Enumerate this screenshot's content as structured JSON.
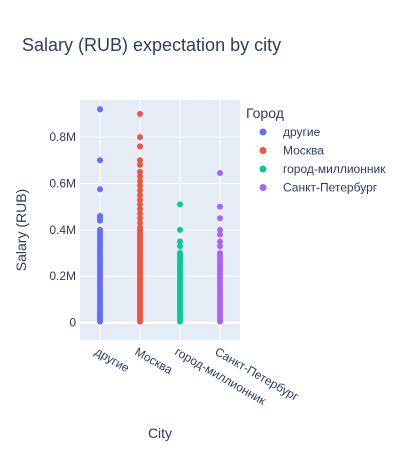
{
  "chart_data": {
    "type": "scatter",
    "title": "Salary (RUB) expectation by city",
    "xlabel": "City",
    "ylabel": "Salary (RUB)",
    "categories": [
      "другие",
      "Москва",
      "город-миллионник",
      "Санкт-Петербург"
    ],
    "y_ticks": [
      "0",
      "0.2M",
      "0.4M",
      "0.6M",
      "0.8M"
    ],
    "y_tick_values": [
      0,
      200000,
      400000,
      600000,
      800000
    ],
    "ylim": [
      -75000,
      960000
    ],
    "legend_title": "Город",
    "legend_position": "right",
    "grid": true,
    "plot_bg": "#e5ecf6",
    "series": [
      {
        "name": "другие",
        "color": "#636efa",
        "category": "другие",
        "values": [
          920000,
          700000,
          575000,
          460000,
          450000,
          440000,
          400000,
          390000,
          380000,
          370000,
          360000,
          350000,
          340000,
          330000,
          320000,
          310000,
          300000,
          290000,
          280000,
          270000,
          260000,
          250000,
          240000,
          230000,
          220000,
          210000,
          200000,
          190000,
          180000,
          170000,
          160000,
          150000,
          140000,
          130000,
          120000,
          110000,
          100000,
          90000,
          80000,
          70000,
          60000,
          50000,
          40000,
          30000,
          20000,
          10000,
          5000
        ]
      },
      {
        "name": "Москва",
        "color": "#ef553b",
        "category": "Москва",
        "values": [
          900000,
          800000,
          760000,
          700000,
          680000,
          650000,
          630000,
          610000,
          590000,
          570000,
          550000,
          530000,
          510000,
          490000,
          470000,
          450000,
          430000,
          410000,
          400000,
          390000,
          380000,
          370000,
          360000,
          350000,
          340000,
          330000,
          320000,
          310000,
          300000,
          290000,
          280000,
          270000,
          260000,
          250000,
          240000,
          230000,
          220000,
          210000,
          200000,
          190000,
          180000,
          170000,
          160000,
          150000,
          140000,
          130000,
          120000,
          110000,
          100000,
          90000,
          80000,
          70000,
          60000,
          50000,
          40000,
          30000,
          20000,
          10000,
          5000
        ]
      },
      {
        "name": "город-миллионник",
        "color": "#00cc96",
        "category": "город-миллионник",
        "values": [
          510000,
          400000,
          350000,
          330000,
          300000,
          290000,
          280000,
          270000,
          260000,
          250000,
          240000,
          230000,
          220000,
          210000,
          200000,
          190000,
          180000,
          170000,
          160000,
          150000,
          140000,
          130000,
          120000,
          110000,
          100000,
          90000,
          80000,
          70000,
          60000,
          50000,
          40000,
          30000,
          20000,
          10000,
          5000
        ]
      },
      {
        "name": "Санкт-Петербург",
        "color": "#ab63fa",
        "category": "Санкт-Петербург",
        "values": [
          645000,
          500000,
          450000,
          400000,
          380000,
          350000,
          330000,
          300000,
          290000,
          280000,
          270000,
          260000,
          250000,
          240000,
          230000,
          220000,
          210000,
          200000,
          190000,
          180000,
          170000,
          160000,
          150000,
          140000,
          130000,
          120000,
          110000,
          100000,
          90000,
          80000,
          70000,
          60000,
          50000,
          40000,
          30000,
          20000,
          10000,
          5000
        ]
      }
    ]
  }
}
